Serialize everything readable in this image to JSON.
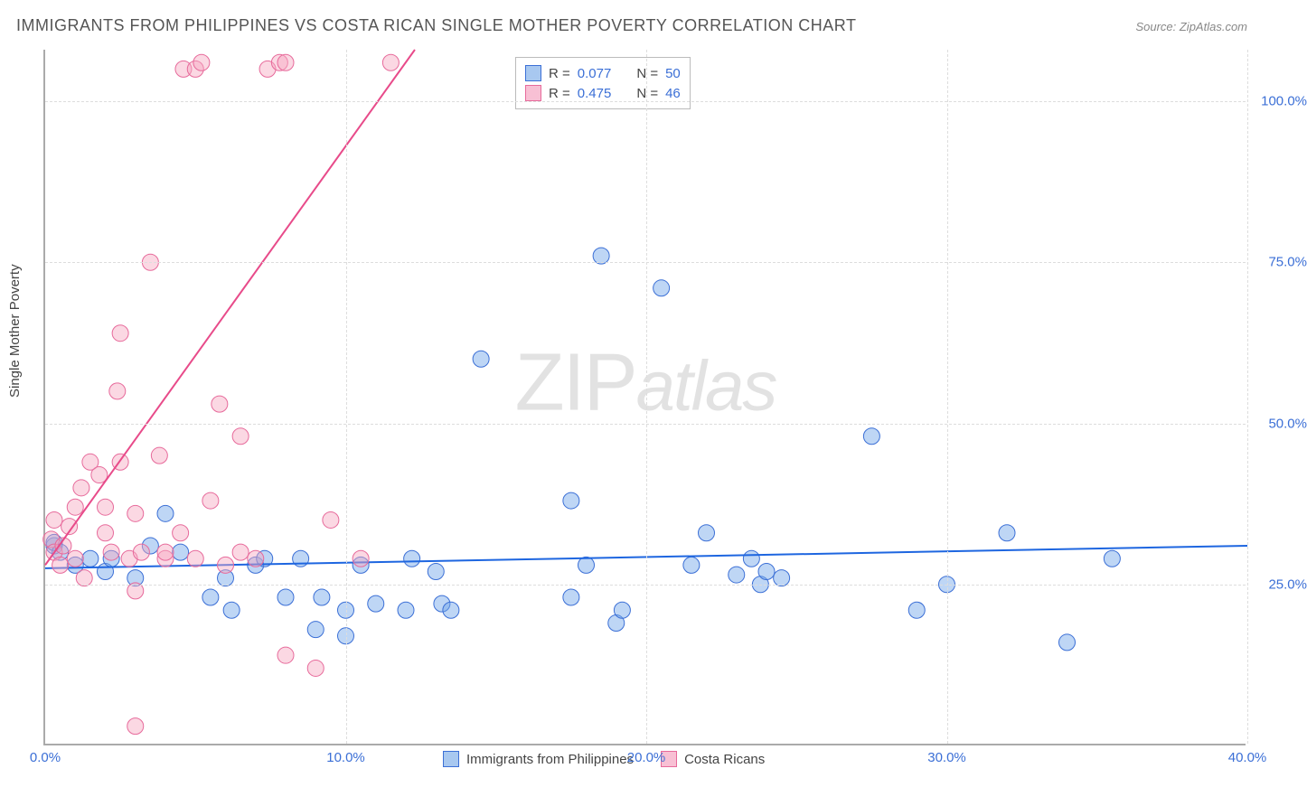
{
  "title": "IMMIGRANTS FROM PHILIPPINES VS COSTA RICAN SINGLE MOTHER POVERTY CORRELATION CHART",
  "source": "Source: ZipAtlas.com",
  "ylabel": "Single Mother Poverty",
  "watermark_zip": "ZIP",
  "watermark_atlas": "atlas",
  "chart": {
    "type": "scatter",
    "xlim": [
      0,
      40
    ],
    "ylim": [
      0,
      108
    ],
    "xtick_step": 10,
    "ytick_step": 25,
    "xtick_format": "percent",
    "ytick_format": "percent",
    "grid_color": "#dddddd",
    "axis_color": "#aaaaaa",
    "background_color": "#ffffff",
    "tick_label_color": "#3b6fd6",
    "marker_radius": 9,
    "marker_opacity": 0.45,
    "line_width": 2,
    "series": [
      {
        "name": "Immigrants from Philippines",
        "color": "#6fa3e8",
        "border": "#3b6fd6",
        "line_color": "#1e66e0",
        "R": 0.077,
        "N": 50,
        "trend": {
          "x1": 0,
          "y1": 27.5,
          "x2": 40,
          "y2": 31.0
        },
        "points": [
          [
            0.3,
            31
          ],
          [
            0.3,
            31.5
          ],
          [
            0.5,
            30
          ],
          [
            1.0,
            28
          ],
          [
            1.5,
            29
          ],
          [
            2.0,
            27
          ],
          [
            2.2,
            29
          ],
          [
            3.0,
            26
          ],
          [
            3.5,
            31
          ],
          [
            4.0,
            36
          ],
          [
            4.5,
            30
          ],
          [
            5.5,
            23
          ],
          [
            6.0,
            26
          ],
          [
            6.2,
            21
          ],
          [
            7.0,
            28
          ],
          [
            7.3,
            29
          ],
          [
            8.0,
            23
          ],
          [
            8.5,
            29
          ],
          [
            9.0,
            18
          ],
          [
            9.2,
            23
          ],
          [
            10.0,
            17
          ],
          [
            10.0,
            21
          ],
          [
            10.5,
            28
          ],
          [
            11.0,
            22
          ],
          [
            12.0,
            21
          ],
          [
            12.2,
            29
          ],
          [
            13.0,
            27
          ],
          [
            13.2,
            22
          ],
          [
            13.5,
            21
          ],
          [
            14.5,
            60
          ],
          [
            17.5,
            38
          ],
          [
            17.5,
            23
          ],
          [
            18.0,
            28
          ],
          [
            18.5,
            76
          ],
          [
            19.0,
            19
          ],
          [
            19.2,
            21
          ],
          [
            20.5,
            71
          ],
          [
            21.5,
            28
          ],
          [
            22.0,
            33
          ],
          [
            23.0,
            26.5
          ],
          [
            23.5,
            29
          ],
          [
            23.8,
            25
          ],
          [
            24.0,
            27
          ],
          [
            24.5,
            26
          ],
          [
            27.5,
            48
          ],
          [
            29.0,
            21
          ],
          [
            30.0,
            25
          ],
          [
            32.0,
            33
          ],
          [
            34.0,
            16
          ],
          [
            35.5,
            29
          ]
        ]
      },
      {
        "name": "Costa Ricans",
        "color": "#f6a8c1",
        "border": "#e76a9b",
        "line_color": "#e84b8a",
        "R": 0.475,
        "N": 46,
        "trend": {
          "x1": 0,
          "y1": 28,
          "x2": 12.3,
          "y2": 108
        },
        "points": [
          [
            0.2,
            32
          ],
          [
            0.3,
            30
          ],
          [
            0.3,
            35
          ],
          [
            0.5,
            28
          ],
          [
            0.6,
            31
          ],
          [
            0.8,
            34
          ],
          [
            1.0,
            29
          ],
          [
            1.0,
            37
          ],
          [
            1.2,
            40
          ],
          [
            1.3,
            26
          ],
          [
            1.5,
            44
          ],
          [
            1.8,
            42
          ],
          [
            2.0,
            33
          ],
          [
            2.0,
            37
          ],
          [
            2.2,
            30
          ],
          [
            2.4,
            55
          ],
          [
            2.5,
            64
          ],
          [
            2.5,
            44
          ],
          [
            2.8,
            29
          ],
          [
            3.0,
            24
          ],
          [
            3.0,
            36
          ],
          [
            3.2,
            30
          ],
          [
            3.5,
            75
          ],
          [
            3.8,
            45
          ],
          [
            4.0,
            29
          ],
          [
            4.0,
            30
          ],
          [
            4.5,
            33
          ],
          [
            4.6,
            105
          ],
          [
            5.0,
            105
          ],
          [
            5.0,
            29
          ],
          [
            5.2,
            106
          ],
          [
            5.5,
            38
          ],
          [
            5.8,
            53
          ],
          [
            6.0,
            28
          ],
          [
            6.5,
            48
          ],
          [
            6.5,
            30
          ],
          [
            7.0,
            29
          ],
          [
            7.4,
            105
          ],
          [
            7.8,
            106
          ],
          [
            8.0,
            14
          ],
          [
            8.0,
            106
          ],
          [
            9.0,
            12
          ],
          [
            9.5,
            35
          ],
          [
            10.5,
            29
          ],
          [
            11.5,
            106
          ],
          [
            3.0,
            3
          ]
        ]
      }
    ]
  },
  "legend_bottom": [
    {
      "label": "Immigrants from Philippines",
      "fill": "#a8c8f0",
      "border": "#3b6fd6"
    },
    {
      "label": "Costa Ricans",
      "fill": "#f8c0d4",
      "border": "#e76a9b"
    }
  ],
  "legend_top": [
    {
      "fill": "#a8c8f0",
      "border": "#3b6fd6",
      "r_label": "R = ",
      "r_val": "0.077",
      "n_label": "N = ",
      "n_val": "50"
    },
    {
      "fill": "#f8c0d4",
      "border": "#e76a9b",
      "r_label": "R = ",
      "r_val": "0.475",
      "n_label": "N = ",
      "n_val": "46"
    }
  ],
  "xtick_labels": [
    "0.0%",
    "10.0%",
    "20.0%",
    "30.0%",
    "40.0%"
  ],
  "ytick_labels": [
    "25.0%",
    "50.0%",
    "75.0%",
    "100.0%"
  ]
}
